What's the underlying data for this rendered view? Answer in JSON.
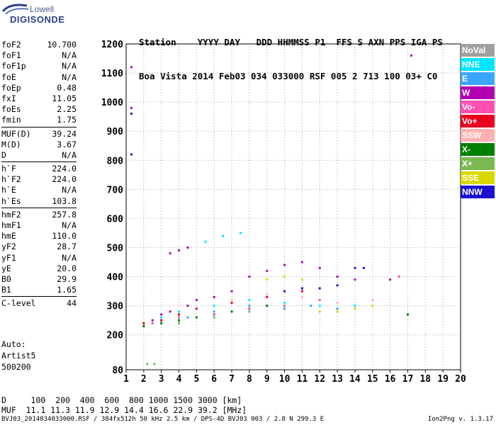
{
  "logo": {
    "line1": "Lowell",
    "line2": "DIGISONDE"
  },
  "header": {
    "row1": "Station    YYYY DAY   DDD HHMMSS P1  FFS S AXN PPS IGA PS",
    "row2": "Boa Vista 2014 Feb03 034 033000 RSF 005 2 713 100 03+ C0"
  },
  "params": [
    {
      "label": "foF2",
      "value": "10.700"
    },
    {
      "label": "foF1",
      "value": "N/A"
    },
    {
      "label": "foF1p",
      "value": "N/A"
    },
    {
      "label": "foE",
      "value": "N/A"
    },
    {
      "label": "foEp",
      "value": "0.48"
    },
    {
      "label": "fxI",
      "value": "11.05"
    },
    {
      "label": "foEs",
      "value": "2.25"
    },
    {
      "label": "fmin",
      "value": "1.75"
    },
    {
      "sep": true
    },
    {
      "label": "MUF(D)",
      "value": "39.24"
    },
    {
      "label": "M(D)",
      "value": "3.67"
    },
    {
      "label": "D",
      "value": "N/A"
    },
    {
      "sep": true
    },
    {
      "label": "h`F",
      "value": "224.0"
    },
    {
      "label": "h`F2",
      "value": "224.0"
    },
    {
      "label": "h`E",
      "value": "N/A"
    },
    {
      "label": "h`Es",
      "value": "103.8"
    },
    {
      "sep": true
    },
    {
      "label": "hmF2",
      "value": "257.8"
    },
    {
      "label": "hmF1",
      "value": "N/A"
    },
    {
      "label": "hmE",
      "value": "110.0"
    },
    {
      "label": "yF2",
      "value": "28.7"
    },
    {
      "label": "yF1",
      "value": "N/A"
    },
    {
      "label": "yE",
      "value": "20.0"
    },
    {
      "label": "B0",
      "value": "29.9"
    },
    {
      "label": "B1",
      "value": "1.65"
    },
    {
      "sep": true
    },
    {
      "label": "C-level",
      "value": "44"
    }
  ],
  "auto": {
    "line1": "Auto:",
    "line2": "Artist5",
    "line3": "500200"
  },
  "legend": [
    {
      "label": "NoVal",
      "color": "#a0a0a0"
    },
    {
      "label": "NNE",
      "color": "#00e6ff"
    },
    {
      "label": "E",
      "color": "#3aa6ff"
    },
    {
      "label": "W",
      "color": "#b000b0"
    },
    {
      "label": "Vo-",
      "color": "#ff4fb0"
    },
    {
      "label": "Vo+",
      "color": "#e8001c"
    },
    {
      "label": "SSW",
      "color": "#ffb0b0"
    },
    {
      "label": "X-",
      "color": "#008000"
    },
    {
      "label": "X+",
      "color": "#7ab850"
    },
    {
      "label": "SSE",
      "color": "#d8d800"
    },
    {
      "label": "NNW",
      "color": "#1a10d0"
    }
  ],
  "footer": {
    "line1": "D     100  200  400  600  800 1000 1500 3000 [km]",
    "line2": "MUF  11.1 11.3 11.9 12.9 14.4 16.6 22.9 39.2 [MHz]",
    "line3": "BVJ03_2014034033000.RSF / 384fx512h 50 kHz 2.5 km / DPS-4D BVJ03 003 / 2.8 N 299.3 E",
    "version": "Ion2Png v. 1.3.17"
  },
  "chart_data": {
    "type": "scatter",
    "xlim": [
      1,
      20
    ],
    "ylim": [
      80,
      1200
    ],
    "x_ticks": [
      1,
      2,
      3,
      4,
      5,
      6,
      7,
      8,
      9,
      10,
      11,
      12,
      13,
      14,
      15,
      16,
      17,
      18,
      19,
      20
    ],
    "y_ticks": [
      80,
      200,
      300,
      400,
      500,
      600,
      700,
      800,
      900,
      1000,
      1100,
      1200
    ],
    "grid": true,
    "legend_position": "right",
    "series": [
      {
        "name": "W",
        "color": "#b000b0",
        "points": [
          [
            3.5,
            480
          ],
          [
            4.0,
            490
          ],
          [
            4.5,
            500
          ],
          [
            2.5,
            250
          ],
          [
            3.0,
            270
          ],
          [
            3.5,
            280
          ],
          [
            4.5,
            300
          ],
          [
            5.0,
            320
          ],
          [
            6.0,
            330
          ],
          [
            7.0,
            350
          ],
          [
            8.0,
            400
          ],
          [
            9.0,
            420
          ],
          [
            10.0,
            440
          ],
          [
            11.0,
            450
          ],
          [
            12.0,
            430
          ],
          [
            13.0,
            400
          ],
          [
            14.0,
            390
          ],
          [
            16.0,
            390
          ],
          [
            17.2,
            1160
          ],
          [
            1.3,
            1120
          ],
          [
            1.3,
            980
          ]
        ]
      },
      {
        "name": "NNW",
        "color": "#1a10d0",
        "points": [
          [
            12.0,
            360
          ],
          [
            13.0,
            370
          ],
          [
            14.0,
            430
          ],
          [
            14.5,
            430
          ],
          [
            11.0,
            360
          ],
          [
            10.0,
            350
          ],
          [
            1.3,
            960
          ],
          [
            1.3,
            820
          ]
        ]
      },
      {
        "name": "NNE",
        "color": "#00e6ff",
        "points": [
          [
            3.0,
            260
          ],
          [
            4.0,
            280
          ],
          [
            5.0,
            290
          ],
          [
            6.0,
            300
          ],
          [
            7.0,
            310
          ],
          [
            8.0,
            320
          ],
          [
            9.0,
            300
          ],
          [
            10.0,
            310
          ],
          [
            12.0,
            300
          ],
          [
            14.0,
            300
          ],
          [
            5.5,
            520
          ],
          [
            6.5,
            540
          ],
          [
            7.5,
            550
          ]
        ]
      },
      {
        "name": "E",
        "color": "#3aa6ff",
        "points": [
          [
            3.0,
            250
          ],
          [
            4.5,
            260
          ],
          [
            6.0,
            280
          ],
          [
            8.0,
            300
          ],
          [
            10.0,
            290
          ],
          [
            11.5,
            300
          ],
          [
            13.0,
            290
          ]
        ]
      },
      {
        "name": "Vo+",
        "color": "#e8001c",
        "points": [
          [
            2.0,
            240
          ],
          [
            3.0,
            250
          ],
          [
            4.0,
            270
          ],
          [
            5.0,
            290
          ],
          [
            7.0,
            310
          ],
          [
            9.0,
            330
          ],
          [
            11.0,
            350
          ]
        ]
      },
      {
        "name": "SSE",
        "color": "#d8d800",
        "points": [
          [
            9.0,
            390
          ],
          [
            10.0,
            400
          ],
          [
            11.0,
            390
          ],
          [
            12.0,
            280
          ],
          [
            13.0,
            280
          ],
          [
            14.0,
            290
          ],
          [
            15.0,
            300
          ]
        ]
      },
      {
        "name": "X-",
        "color": "#008000",
        "points": [
          [
            2.0,
            230
          ],
          [
            3.0,
            240
          ],
          [
            4.0,
            250
          ],
          [
            5.0,
            260
          ],
          [
            6.0,
            270
          ],
          [
            7.0,
            280
          ],
          [
            8.0,
            290
          ],
          [
            9.0,
            300
          ],
          [
            17.0,
            270
          ]
        ]
      },
      {
        "name": "X+",
        "color": "#7ab850",
        "points": [
          [
            2.2,
            100
          ],
          [
            2.6,
            100
          ],
          [
            4.0,
            240
          ],
          [
            6.0,
            260
          ],
          [
            8.0,
            280
          ],
          [
            10.0,
            300
          ]
        ]
      },
      {
        "name": "Vo-",
        "color": "#ff4fb0",
        "points": [
          [
            2.5,
            240
          ],
          [
            4.0,
            260
          ],
          [
            6.0,
            270
          ],
          [
            8.0,
            290
          ],
          [
            10.0,
            300
          ],
          [
            12.0,
            320
          ],
          [
            16.5,
            400
          ]
        ]
      },
      {
        "name": "SSW",
        "color": "#ffb0b0",
        "points": [
          [
            7.0,
            320
          ],
          [
            9.0,
            340
          ],
          [
            11.0,
            330
          ],
          [
            13.0,
            310
          ],
          [
            15.0,
            320
          ]
        ]
      }
    ]
  }
}
